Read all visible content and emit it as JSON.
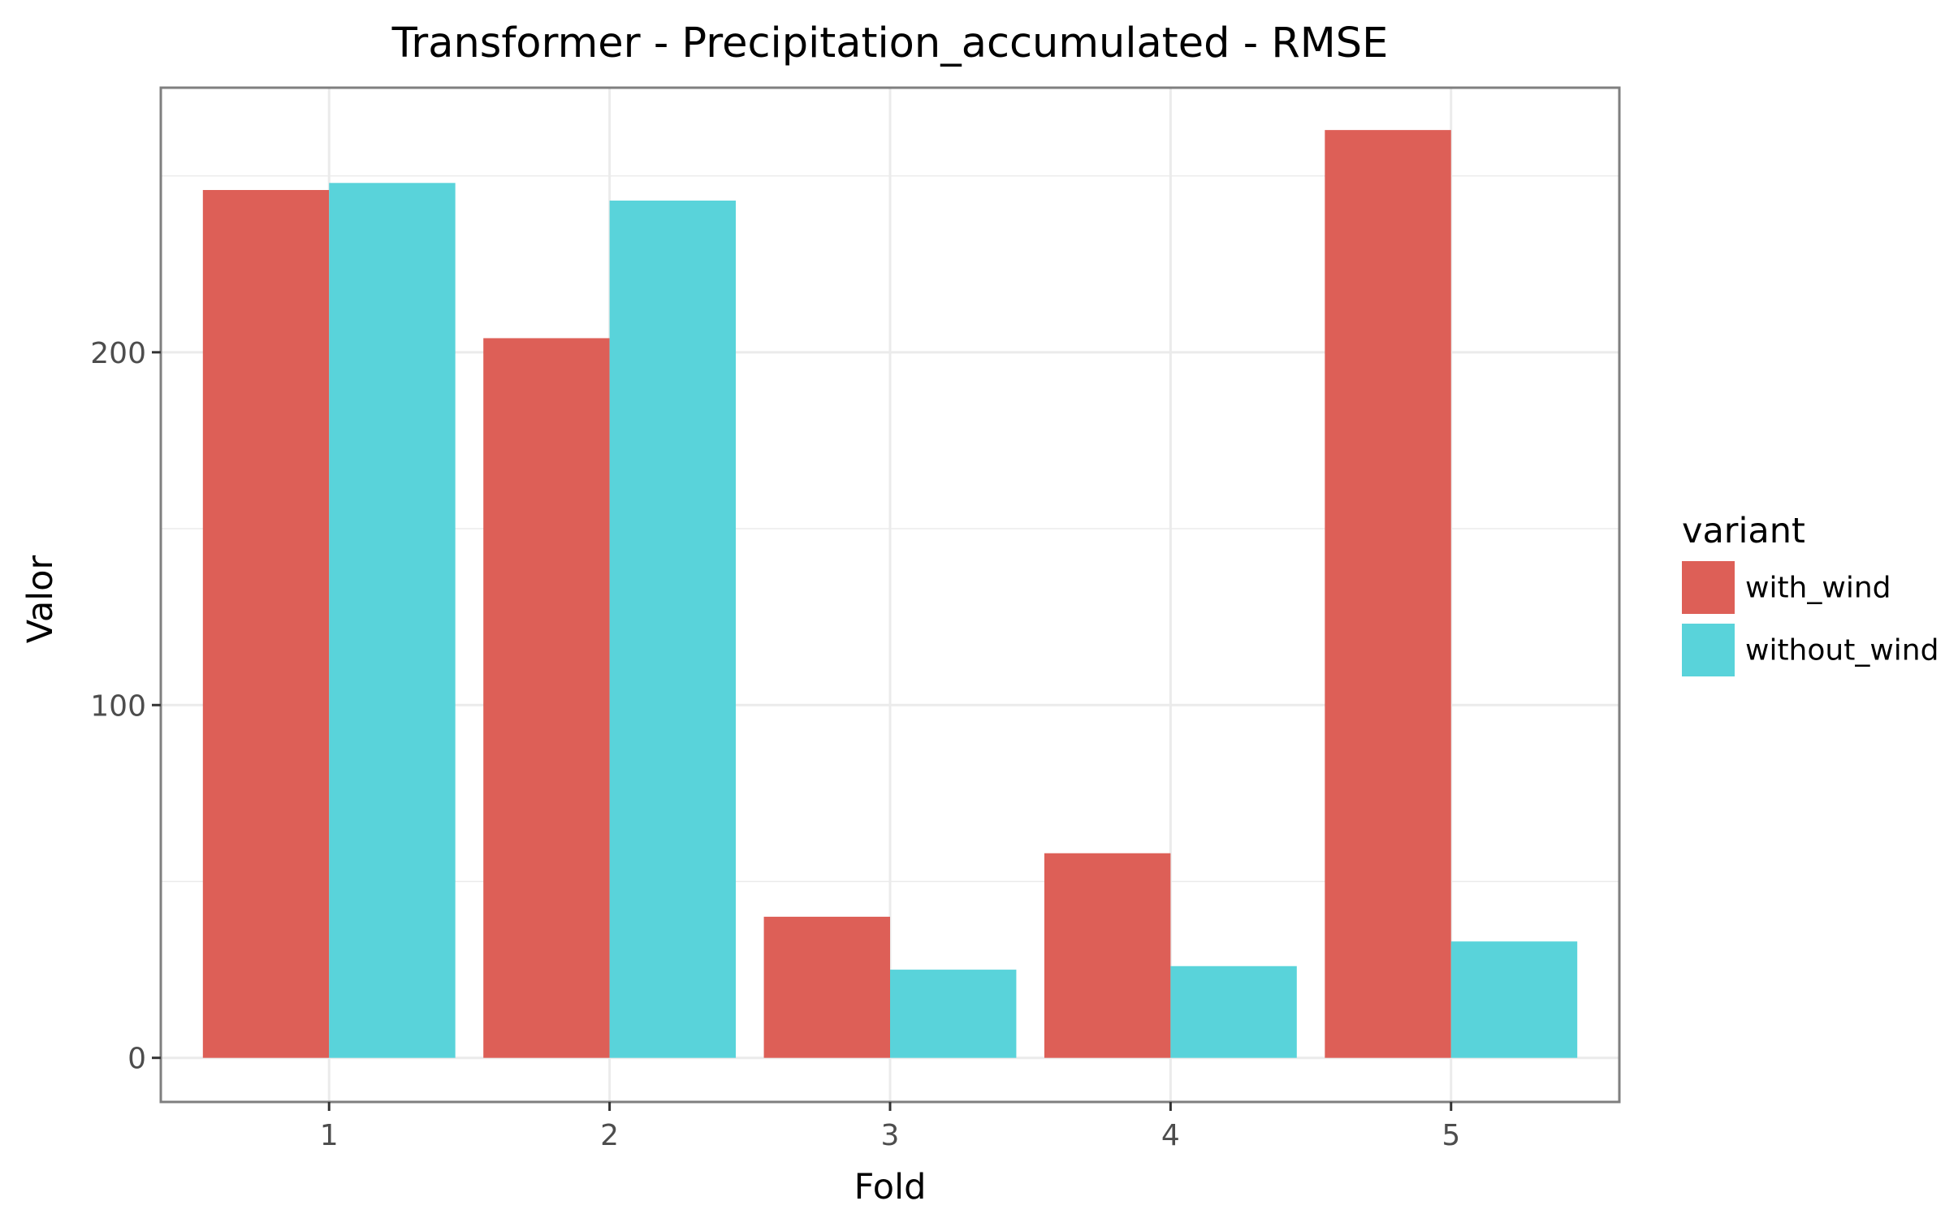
{
  "chart_data": {
    "type": "bar",
    "title": "Transformer - Precipitation_accumulated - RMSE",
    "xlabel": "Fold",
    "ylabel": "Valor",
    "categories": [
      "1",
      "2",
      "3",
      "4",
      "5"
    ],
    "series": [
      {
        "name": "with_wind",
        "color": "#dd5f57",
        "values": [
          246,
          204,
          40,
          58,
          263
        ]
      },
      {
        "name": "without_wind",
        "color": "#59d3da",
        "values": [
          248,
          243,
          25,
          26,
          33
        ]
      }
    ],
    "yticks": [
      0,
      100,
      200
    ],
    "ylim": [
      -12.5,
      275
    ],
    "grid": true,
    "legend": {
      "title": "variant",
      "position": "right"
    },
    "colors": {
      "panel_border": "#7f7f7f",
      "grid": "#ebebeb"
    }
  }
}
